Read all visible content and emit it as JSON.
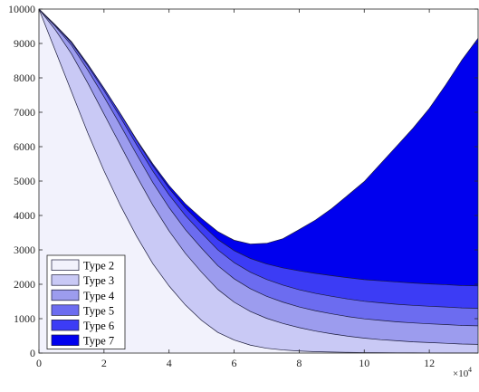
{
  "chart_data": {
    "type": "area",
    "stacked": true,
    "x_multiplier_label": "×10",
    "x_multiplier_exponent": "4",
    "xlim": [
      0,
      13.5
    ],
    "ylim": [
      0,
      10000
    ],
    "x_ticks": [
      0,
      2,
      4,
      6,
      8,
      10,
      12
    ],
    "y_ticks": [
      0,
      1000,
      2000,
      3000,
      4000,
      5000,
      6000,
      7000,
      8000,
      9000,
      10000
    ],
    "grid": false,
    "legend_position": "bottom-left",
    "x": [
      0,
      0.5,
      1,
      1.5,
      2,
      2.5,
      3,
      3.5,
      4,
      4.5,
      5,
      5.5,
      6,
      6.5,
      7,
      7.5,
      8,
      8.5,
      9,
      9.5,
      10,
      10.5,
      11,
      11.5,
      12,
      12.5,
      13,
      13.5
    ],
    "series": [
      {
        "name": "Type 2",
        "color": "#F2F2FC",
        "values": [
          10000,
          8800,
          7600,
          6400,
          5300,
          4300,
          3400,
          2600,
          1950,
          1400,
          950,
          600,
          380,
          230,
          140,
          90,
          60,
          40,
          30,
          20,
          15,
          10,
          8,
          6,
          5,
          4,
          3,
          3
        ]
      },
      {
        "name": "Type 3",
        "color": "#C9C9F5",
        "values": [
          0,
          600,
          1100,
          1450,
          1650,
          1750,
          1750,
          1700,
          1600,
          1500,
          1400,
          1250,
          1100,
          980,
          870,
          770,
          680,
          600,
          530,
          470,
          420,
          380,
          350,
          320,
          300,
          280,
          260,
          250
        ]
      },
      {
        "name": "Type 4",
        "color": "#9C9CEE",
        "values": [
          0,
          100,
          250,
          380,
          500,
          580,
          630,
          660,
          680,
          690,
          700,
          690,
          680,
          660,
          640,
          620,
          600,
          590,
          580,
          570,
          560,
          560,
          550,
          550,
          545,
          545,
          540,
          540
        ]
      },
      {
        "name": "Type 5",
        "color": "#6C6CF0",
        "values": [
          0,
          30,
          70,
          120,
          180,
          230,
          280,
          330,
          370,
          410,
          440,
          460,
          470,
          480,
          490,
          495,
          500,
          505,
          510,
          510,
          510,
          510,
          510,
          510,
          510,
          510,
          510,
          510
        ]
      },
      {
        "name": "Type 6",
        "color": "#3C3CF5",
        "values": [
          0,
          10,
          30,
          50,
          70,
          100,
          130,
          160,
          190,
          220,
          250,
          300,
          350,
          400,
          450,
          500,
          550,
          580,
          600,
          620,
          630,
          640,
          650,
          650,
          650,
          650,
          650,
          650
        ]
      },
      {
        "name": "Type 7",
        "color": "#0000EE",
        "values": [
          0,
          0,
          0,
          0,
          0,
          10,
          20,
          50,
          80,
          120,
          170,
          230,
          300,
          420,
          600,
          850,
          1200,
          1550,
          1950,
          2400,
          2850,
          3400,
          3950,
          4500,
          5100,
          5800,
          6550,
          7200
        ]
      }
    ]
  }
}
